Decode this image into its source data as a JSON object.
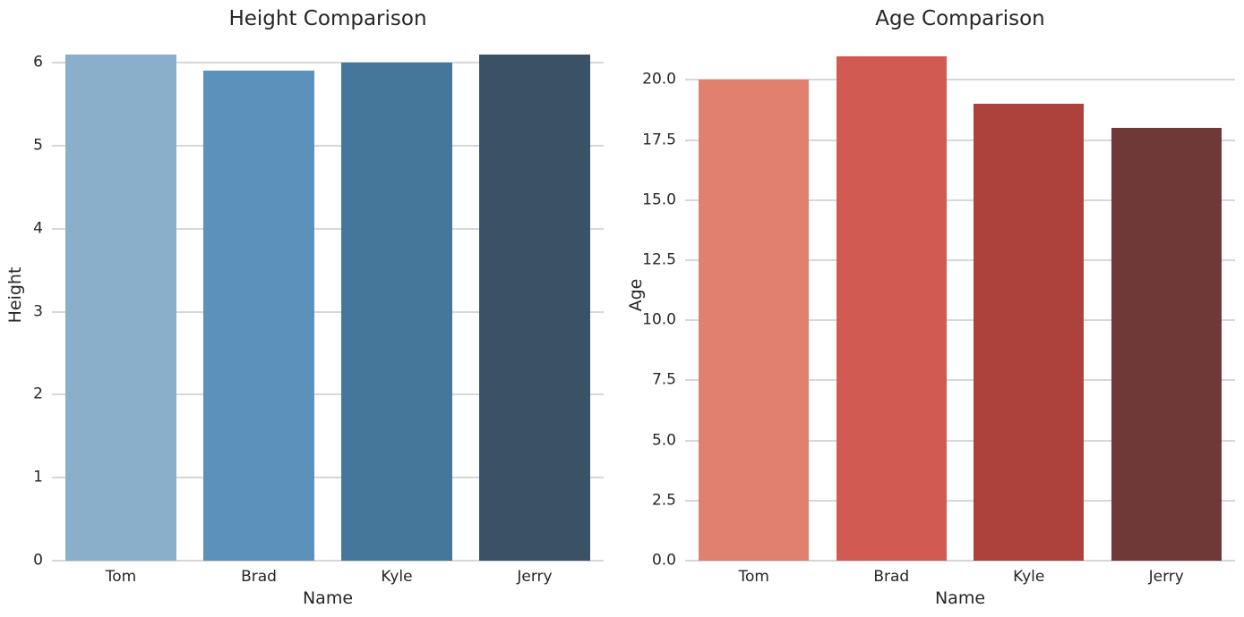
{
  "figure": {
    "background": "#ffffff",
    "text_color": "#262626",
    "grid_color": "#d7d7d7"
  },
  "chart_data": [
    {
      "type": "bar",
      "title": "Height Comparison",
      "xlabel": "Name",
      "ylabel": "Height",
      "categories": [
        "Tom",
        "Brad",
        "Kyle",
        "Jerry"
      ],
      "values": [
        6.1,
        5.9,
        6.0,
        6.1
      ],
      "bar_colors": [
        "#89afcb",
        "#5b91bb",
        "#447799",
        "#3a5166"
      ],
      "yticks": [
        0,
        1,
        2,
        3,
        4,
        5,
        6
      ],
      "ytick_labels": [
        "0",
        "1",
        "2",
        "3",
        "4",
        "5",
        "6"
      ],
      "ylim": [
        0,
        6.4
      ],
      "grid": true,
      "legend": false
    },
    {
      "type": "bar",
      "title": "Age Comparison",
      "xlabel": "Name",
      "ylabel": "Age",
      "categories": [
        "Tom",
        "Brad",
        "Kyle",
        "Jerry"
      ],
      "values": [
        20,
        21,
        19,
        18
      ],
      "bar_colors": [
        "#e08170",
        "#d15a52",
        "#ad423c",
        "#6f3937"
      ],
      "yticks": [
        0,
        2.5,
        5,
        7.5,
        10,
        12.5,
        15,
        17.5,
        20
      ],
      "ytick_labels": [
        "0.0",
        "2.5",
        "5.0",
        "7.5",
        "10.0",
        "12.5",
        "15.0",
        "17.5",
        "20.0"
      ],
      "ylim": [
        0,
        22.1
      ],
      "grid": true,
      "legend": false
    }
  ]
}
